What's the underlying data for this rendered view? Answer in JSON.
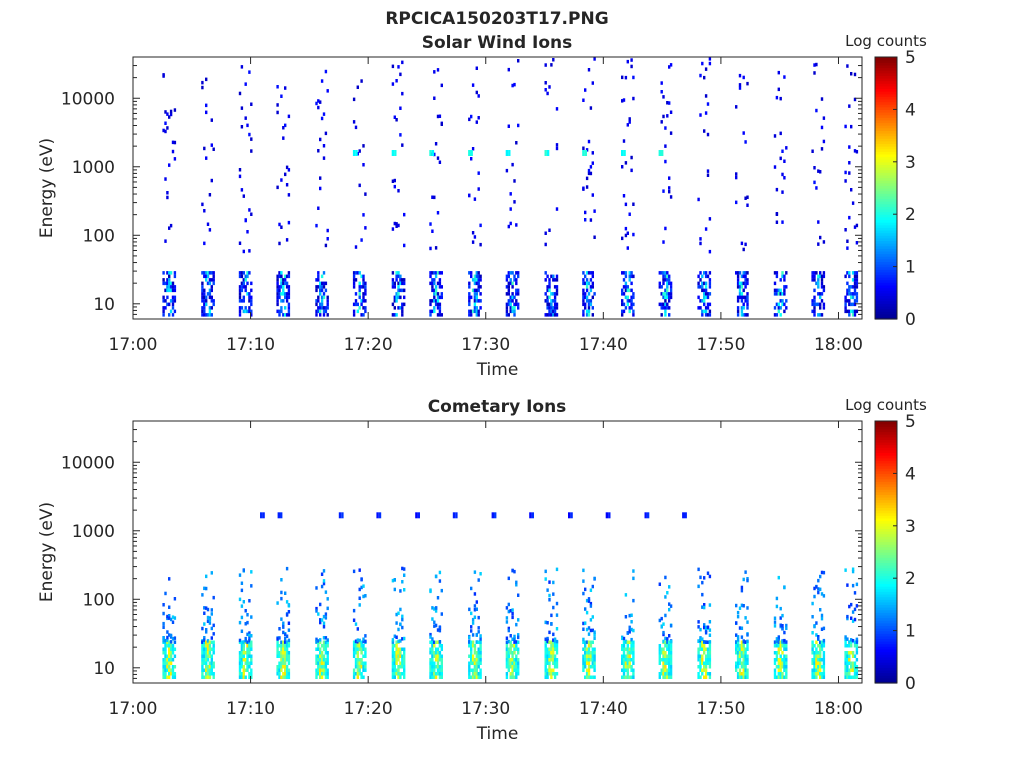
{
  "figure": {
    "title": "RPCICA150203T17.PNG"
  },
  "colormap": {
    "name": "jet",
    "stops": [
      "#00008f",
      "#0000ff",
      "#0080ff",
      "#00ffff",
      "#80ff80",
      "#ffff00",
      "#ff8000",
      "#ff0000",
      "#800000"
    ]
  },
  "chart_data": [
    {
      "type": "heatmap",
      "title": "Solar Wind Ions",
      "xlabel": "Time",
      "ylabel": "Energy (eV)",
      "xlim": [
        "17:00",
        "18:02"
      ],
      "ylim": [
        6,
        40000
      ],
      "yscale": "log",
      "xticks": [
        "17:00",
        "17:10",
        "17:20",
        "17:30",
        "17:40",
        "17:50",
        "18:00"
      ],
      "yticks": [
        10,
        100,
        1000,
        10000
      ],
      "colorbar": {
        "label": "Log counts",
        "range": [
          0,
          5
        ],
        "ticks": [
          0,
          1,
          2,
          3,
          4,
          5
        ]
      },
      "bursts": {
        "start_minutes": [
          2.5,
          5.8,
          9.0,
          12.2,
          15.5,
          18.7,
          22.0,
          25.2,
          28.5,
          31.7,
          35.0,
          38.2,
          41.5,
          44.7,
          48.0,
          51.2,
          54.5,
          57.7,
          60.5
        ],
        "low_energy_band": {
          "energy_range": [
            7,
            30
          ],
          "log_counts_range": [
            0.2,
            2.2
          ]
        },
        "scatter_energy_range": [
          60,
          40000
        ],
        "scatter_log_counts": 0.3,
        "peak_log_counts": 2.1
      },
      "features": [
        {
          "energy": 1700,
          "minutes": [
            18.7,
            22.0,
            25.2,
            28.5,
            31.7,
            35.0,
            38.2,
            41.5,
            44.7
          ],
          "log_counts": 1.8
        }
      ]
    },
    {
      "type": "heatmap",
      "title": "Cometary Ions",
      "xlabel": "Time",
      "ylabel": "Energy (eV)",
      "xlim": [
        "17:00",
        "18:02"
      ],
      "ylim": [
        6,
        40000
      ],
      "yscale": "log",
      "xticks": [
        "17:00",
        "17:10",
        "17:20",
        "17:30",
        "17:40",
        "17:50",
        "18:00"
      ],
      "yticks": [
        10,
        100,
        1000,
        10000
      ],
      "colorbar": {
        "label": "Log counts",
        "range": [
          0,
          5
        ],
        "ticks": [
          0,
          1,
          2,
          3,
          4,
          5
        ]
      },
      "bursts": {
        "start_minutes": [
          2.5,
          5.8,
          9.0,
          12.2,
          15.5,
          18.7,
          22.0,
          25.2,
          28.5,
          31.7,
          35.0,
          38.2,
          41.5,
          44.7,
          48.0,
          51.2,
          54.5,
          57.7,
          60.5
        ],
        "low_energy_band": {
          "energy_range": [
            7,
            25
          ],
          "log_counts_range": [
            1.5,
            3.0
          ]
        },
        "scatter_energy_range": [
          25,
          300
        ],
        "scatter_log_counts": 0.8,
        "peak_log_counts": 3.0
      },
      "features": [
        {
          "energy": 1800,
          "minutes": [
            10.8,
            12.3,
            17.5,
            20.7,
            24.0,
            27.2,
            30.5,
            33.7,
            37.0,
            40.2,
            43.5,
            46.7
          ],
          "log_counts": 0.6
        }
      ]
    }
  ]
}
